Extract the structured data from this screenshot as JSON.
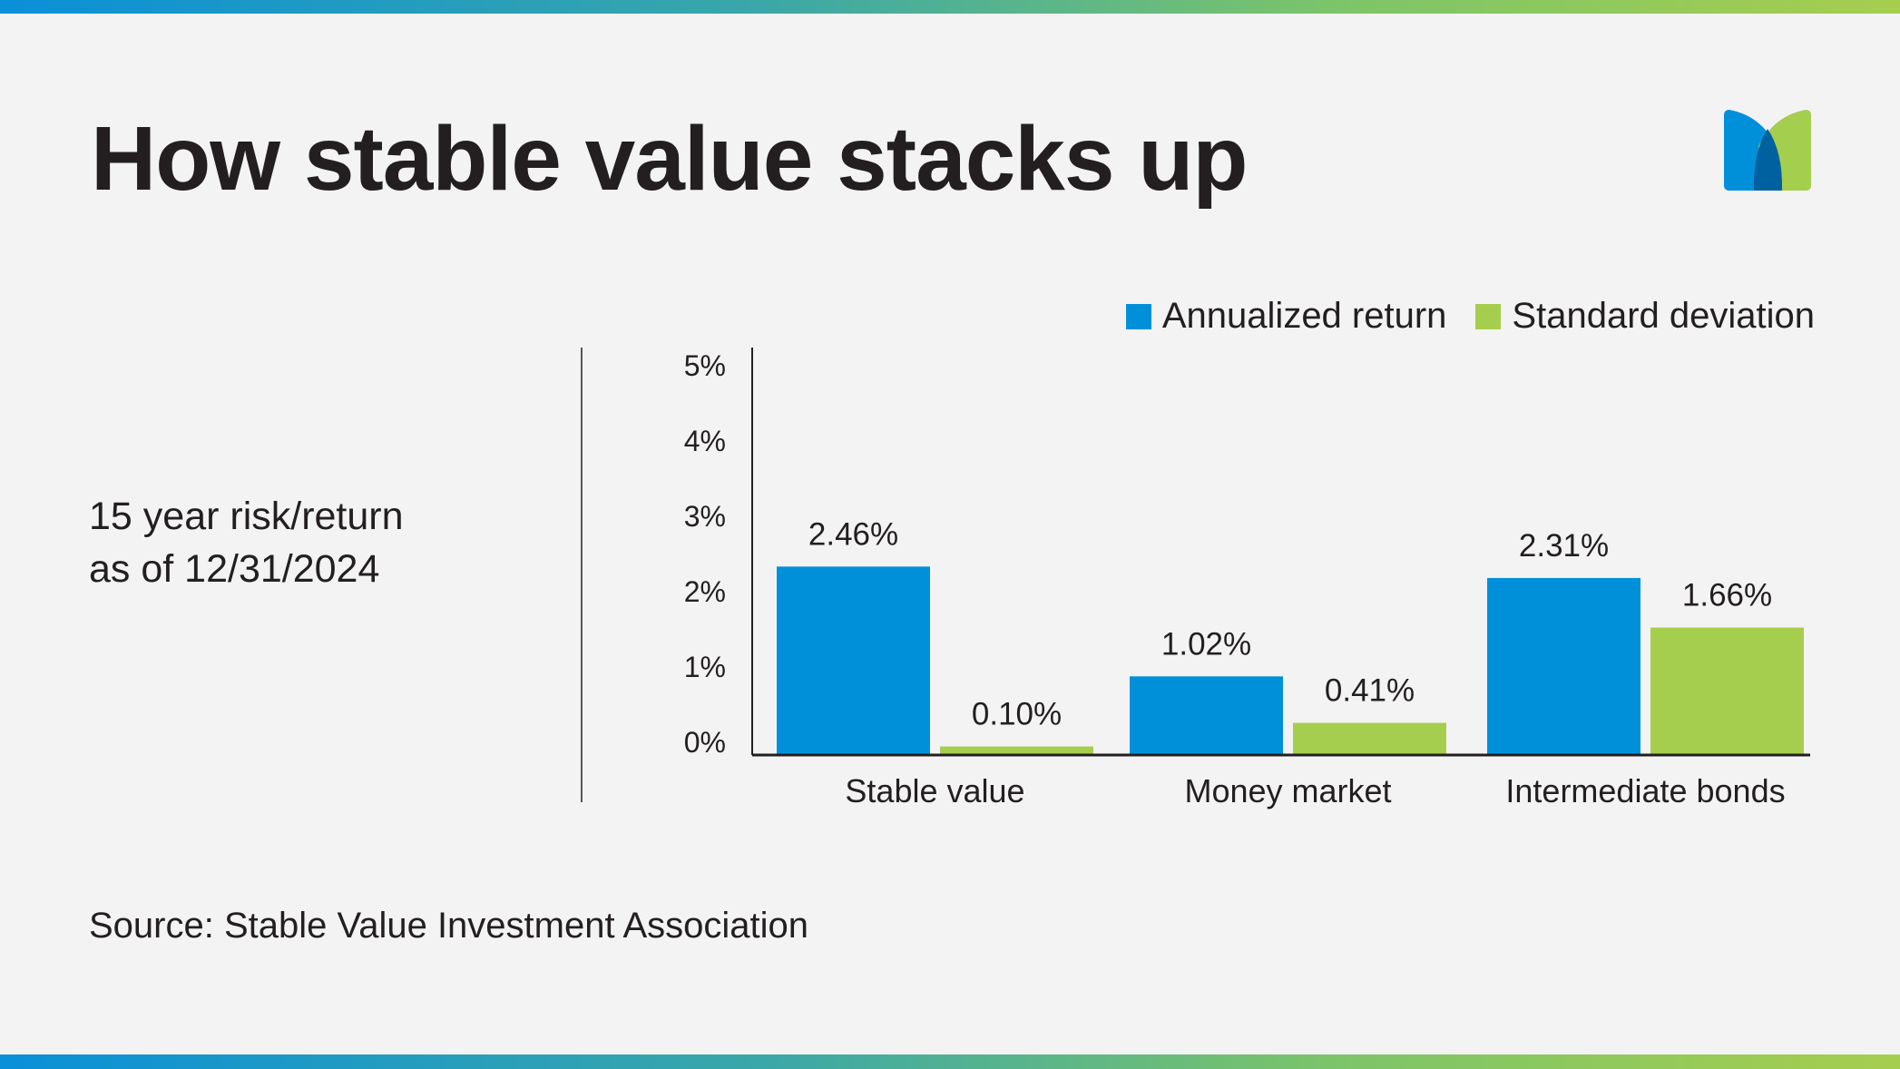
{
  "title": "How stable value stacks up",
  "subtitle_lines": [
    "15 year risk/return",
    "as of 12/31/2024"
  ],
  "source": "Source: Stable Value Investment Association",
  "logo": {
    "name": "MetLife logo",
    "colors": [
      "#0090da",
      "#a4ce4e",
      "#0061a0"
    ]
  },
  "chart_data": {
    "type": "bar",
    "title": "",
    "xlabel": "",
    "ylabel": "",
    "ylim": [
      0,
      5
    ],
    "yticks": [
      "0%",
      "1%",
      "2%",
      "3%",
      "4%",
      "5%"
    ],
    "grid": false,
    "legend_placement": "top-right",
    "categories": [
      "Stable value",
      "Money market",
      "Intermediate bonds"
    ],
    "series": [
      {
        "name": "Annualized return",
        "color": "#0090da",
        "values": [
          2.46,
          1.02,
          2.31
        ],
        "labels": [
          "2.46%",
          "1.02%",
          "2.31%"
        ]
      },
      {
        "name": "Standard deviation",
        "color": "#a6ce4e",
        "values": [
          0.1,
          0.41,
          1.66
        ],
        "labels": [
          "0.10%",
          "0.41%",
          "1.66%"
        ]
      }
    ]
  }
}
